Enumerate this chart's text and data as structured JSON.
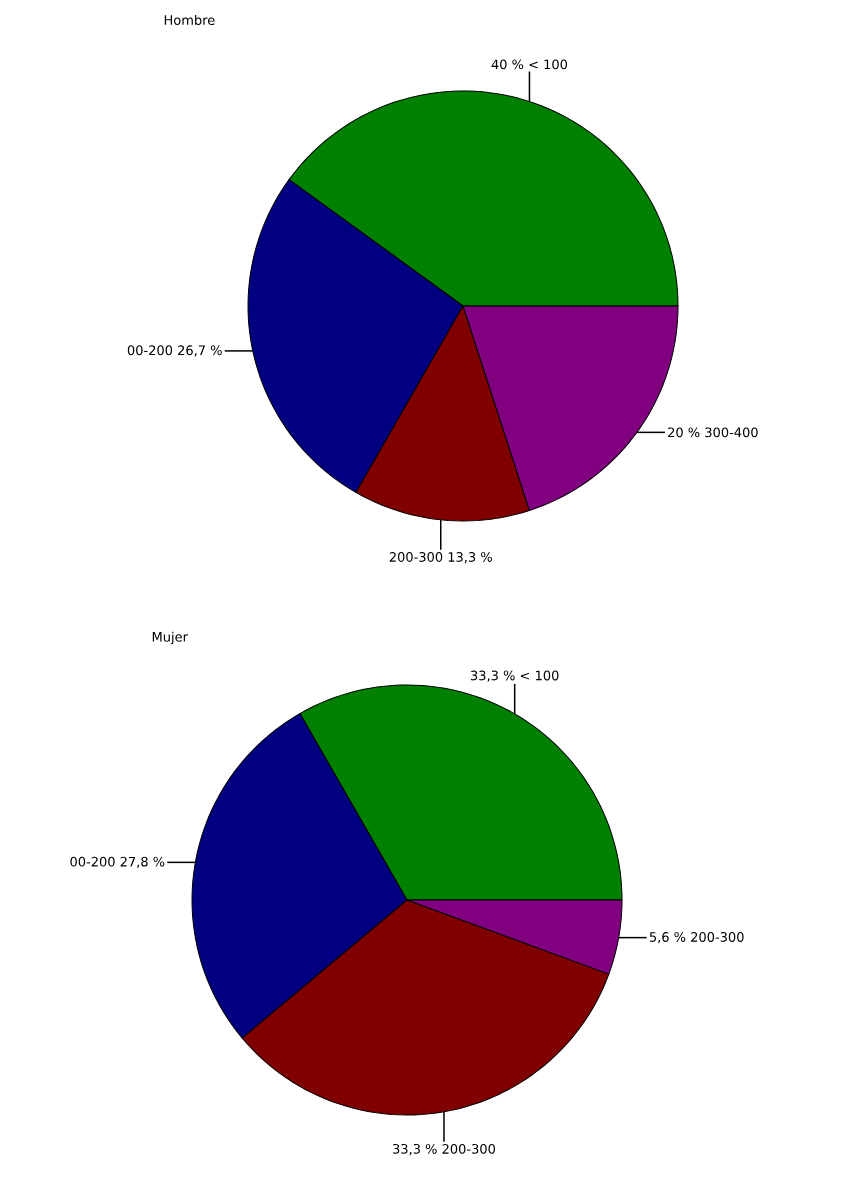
{
  "chart_data": [
    {
      "type": "pie",
      "title": "Hombre",
      "categories": [
        "40 % < 100",
        "00-200 26,7 %",
        "200-300 13,3 %",
        "20 % 300-400"
      ],
      "values": [
        40,
        26.7,
        13.3,
        20
      ],
      "colors": [
        "#008000",
        "#000080",
        "#800000",
        "#800080"
      ]
    },
    {
      "type": "pie",
      "title": "Mujer",
      "categories": [
        "33,3 % < 100",
        "00-200 27,8 %",
        "33,3 % 200-300",
        "5,6 % 200-300"
      ],
      "values": [
        33.3,
        27.8,
        33.3,
        5.6
      ],
      "colors": [
        "#008000",
        "#000080",
        "#800000",
        "#800080"
      ]
    }
  ]
}
